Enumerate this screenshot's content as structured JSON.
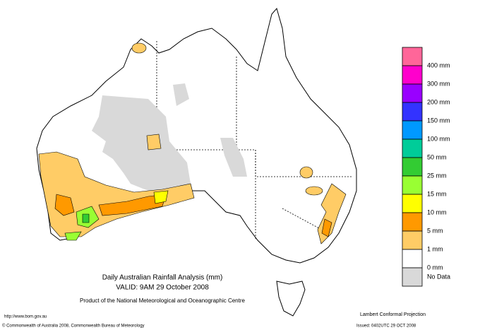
{
  "title": "Daily Australian Rainfall Analysis (mm)",
  "valid": "VALID: 9AM 29 October 2008",
  "product": "Product of the National Meteorological and Oceanographic Centre",
  "url": "http://www.bom.gov.au",
  "copyright": "© Commonwealth of Australia 2008, Commonwealth Bureau of Meteorology",
  "projection": "Lambert Conformal Projection",
  "issued": "Issued: 0402UTC 29 OCT 2008",
  "legend": {
    "colors": [
      "#ff6699",
      "#ff00cc",
      "#9900ff",
      "#3333ff",
      "#0099ff",
      "#00cc99",
      "#33cc33",
      "#99ff33",
      "#ffff00",
      "#ff9900",
      "#ffcc66",
      "#ffffff",
      "#d9d9d9"
    ],
    "labels": [
      "400 mm",
      "300 mm",
      "200 mm",
      "150 mm",
      "100 mm",
      "50 mm",
      "25 mm",
      "15 mm",
      "10 mm",
      "5 mm",
      "1 mm",
      "0 mm",
      "No Data"
    ]
  }
}
